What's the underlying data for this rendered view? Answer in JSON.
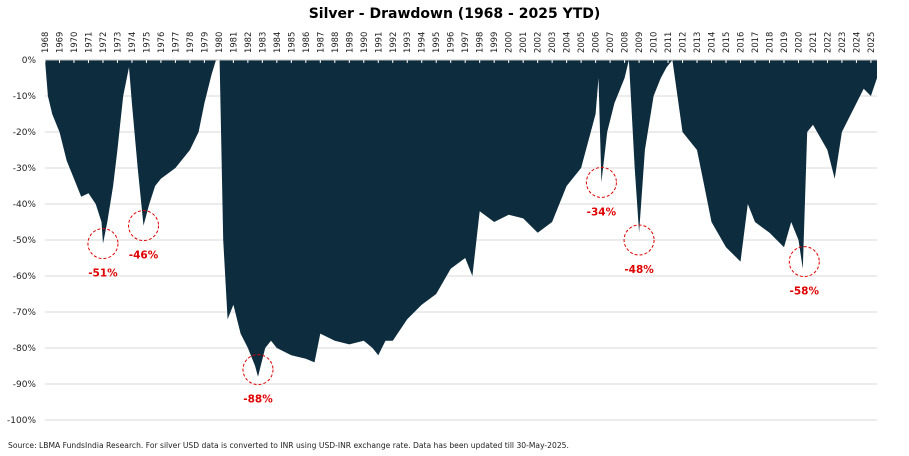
{
  "chart_data": {
    "type": "area",
    "title": "Silver - Drawdown (1968 - 2025 YTD)",
    "xlabel": "",
    "ylabel": "",
    "xlim": [
      1968,
      2025.42
    ],
    "ylim": [
      -100,
      0
    ],
    "x_ticks": [
      "1968",
      "1969",
      "1970",
      "1971",
      "1972",
      "1973",
      "1974",
      "1975",
      "1976",
      "1977",
      "1978",
      "1979",
      "1980",
      "1981",
      "1982",
      "1983",
      "1984",
      "1985",
      "1986",
      "1987",
      "1988",
      "1989",
      "1990",
      "1991",
      "1992",
      "1993",
      "1994",
      "1995",
      "1996",
      "1997",
      "1998",
      "1999",
      "2000",
      "2001",
      "2002",
      "2003",
      "2004",
      "2005",
      "2006",
      "2007",
      "2008",
      "2009",
      "2010",
      "2011",
      "2012",
      "2013",
      "2014",
      "2015",
      "2016",
      "2017",
      "2018",
      "2019",
      "2020",
      "2021",
      "2022",
      "2023",
      "2024",
      "2025"
    ],
    "y_ticks": [
      "0%",
      "-10%",
      "-20%",
      "-30%",
      "-40%",
      "-50%",
      "-60%",
      "-70%",
      "-80%",
      "-90%",
      "-100%"
    ],
    "y_tick_values": [
      0,
      -10,
      -20,
      -30,
      -40,
      -50,
      -60,
      -70,
      -80,
      -90,
      -100
    ],
    "grid": "horizontal",
    "color": "#0d2d3f",
    "x": [
      1968.0,
      1968.2,
      1968.5,
      1969.0,
      1969.5,
      1970.0,
      1970.5,
      1971.0,
      1971.5,
      1971.9,
      1972.0,
      1972.3,
      1972.7,
      1973.0,
      1973.4,
      1973.8,
      1974.0,
      1974.4,
      1974.8,
      1975.2,
      1975.6,
      1976.0,
      1977.0,
      1978.0,
      1978.6,
      1979.0,
      1979.5,
      1979.8,
      1980.05,
      1980.3,
      1980.6,
      1981.0,
      1981.5,
      1982.0,
      1982.5,
      1982.7,
      1983.2,
      1983.6,
      1984.0,
      1985.0,
      1986.0,
      1986.6,
      1987.0,
      1988.0,
      1989.0,
      1990.0,
      1990.6,
      1991.0,
      1991.5,
      1992.0,
      1993.0,
      1994.0,
      1995.0,
      1996.0,
      1997.0,
      1997.5,
      1998.0,
      1999.0,
      2000.0,
      2001.0,
      2002.0,
      2003.0,
      2004.0,
      2005.0,
      2006.0,
      2006.2,
      2006.4,
      2006.8,
      2007.3,
      2008.0,
      2008.3,
      2008.7,
      2009.0,
      2009.4,
      2010.0,
      2010.5,
      2010.9,
      2011.3,
      2012.0,
      2013.0,
      2013.5,
      2014.0,
      2015.0,
      2016.0,
      2016.5,
      2017.0,
      2018.0,
      2019.0,
      2019.5,
      2020.0,
      2020.3,
      2020.6,
      2021.0,
      2022.0,
      2022.5,
      2023.0,
      2024.0,
      2024.5,
      2025.0,
      2025.42
    ],
    "values": [
      0,
      -10,
      -15,
      -20,
      -28,
      -33,
      -38,
      -37,
      -40,
      -45,
      -51,
      -45,
      -35,
      -25,
      -10,
      -2,
      -12,
      -30,
      -46,
      -40,
      -35,
      -33,
      -30,
      -25,
      -20,
      -12,
      -4,
      0,
      0,
      -50,
      -72,
      -68,
      -76,
      -80,
      -85,
      -88,
      -80,
      -78,
      -80,
      -82,
      -83,
      -84,
      -76,
      -78,
      -79,
      -78,
      -80,
      -82,
      -78,
      -78,
      -72,
      -68,
      -65,
      -58,
      -55,
      -60,
      -42,
      -45,
      -43,
      -44,
      -48,
      -45,
      -35,
      -30,
      -15,
      -5,
      -34,
      -20,
      -12,
      -5,
      0,
      -30,
      -48,
      -25,
      -10,
      -5,
      -2,
      0,
      -20,
      -25,
      -35,
      -45,
      -52,
      -56,
      -40,
      -45,
      -48,
      -52,
      -45,
      -50,
      -58,
      -20,
      -18,
      -25,
      -33,
      -20,
      -12,
      -8,
      -10,
      -5
    ],
    "annotations": [
      {
        "x": 1972.0,
        "y": -51,
        "label": "-51%"
      },
      {
        "x": 1974.8,
        "y": -46,
        "label": "-46%"
      },
      {
        "x": 1982.7,
        "y": -86,
        "label": "-88%"
      },
      {
        "x": 2006.4,
        "y": -34,
        "label": "-34%"
      },
      {
        "x": 2009.0,
        "y": -50,
        "label": "-48%"
      },
      {
        "x": 2020.4,
        "y": -56,
        "label": "-58%"
      }
    ],
    "annotation_color": "#e00000",
    "source": "Source: LBMA FundsIndia Research. For silver USD data is converted to INR using USD-INR exchange rate. Data has been updated till 30-May-2025."
  }
}
